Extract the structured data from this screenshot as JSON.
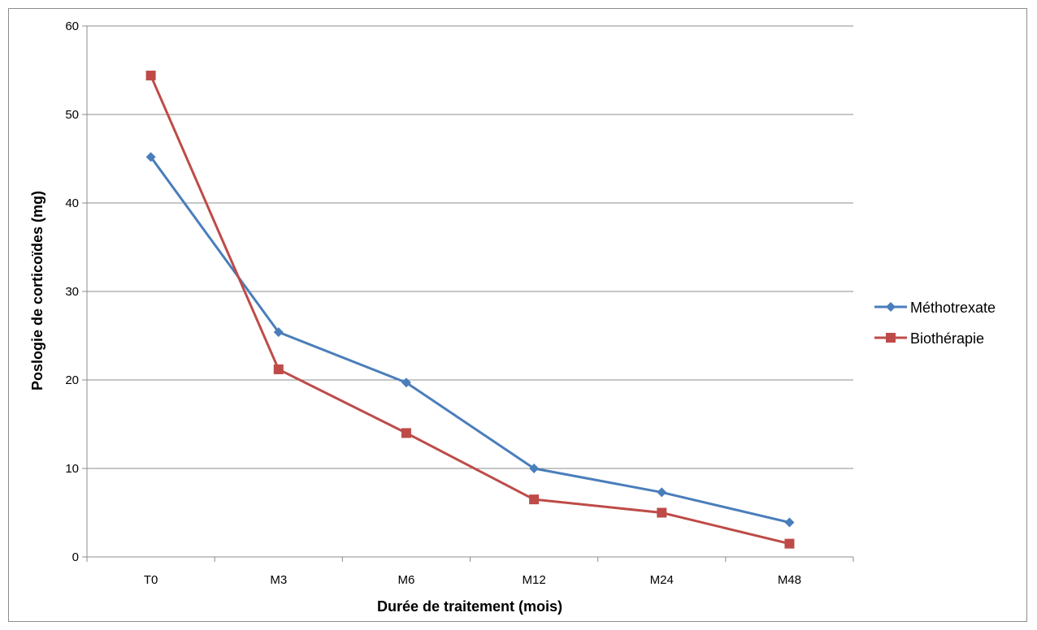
{
  "chart_data": {
    "type": "line",
    "title": "",
    "xlabel": "Durée de traitement (mois)",
    "ylabel": "Poslogie de corticoïdes (mg)",
    "categories": [
      "T0",
      "M3",
      "M6",
      "M12",
      "M24",
      "M48"
    ],
    "ylim": [
      0,
      60
    ],
    "yticks": [
      0,
      10,
      20,
      30,
      40,
      50,
      60
    ],
    "grid": true,
    "legend_position": "right",
    "series": [
      {
        "name": "Méthotrexate",
        "color": "#4a7ebb",
        "marker": "diamond",
        "values": [
          45.2,
          25.4,
          19.7,
          10.0,
          7.3,
          3.9
        ]
      },
      {
        "name": "Biothérapie",
        "color": "#be4b48",
        "marker": "square",
        "values": [
          54.4,
          21.2,
          14.0,
          6.5,
          5.0,
          1.5
        ]
      }
    ]
  }
}
